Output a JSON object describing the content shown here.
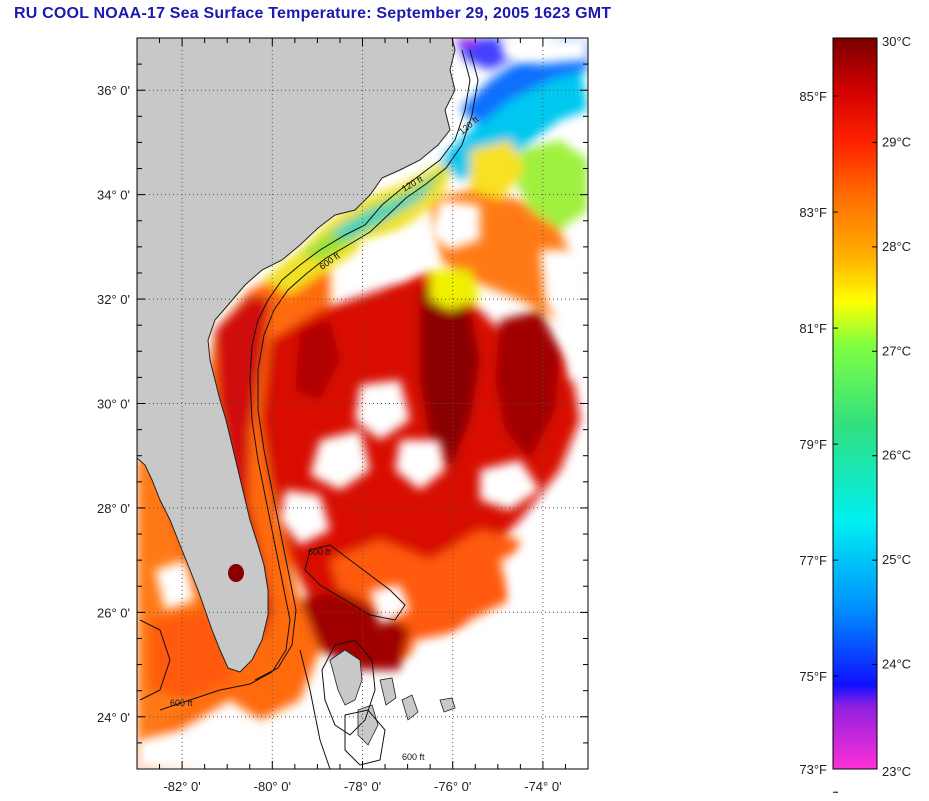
{
  "title": "RU COOL  NOAA-17  Sea Surface Temperature:  September 29, 2005 1623 GMT",
  "map": {
    "lon_range": [
      -83,
      -73
    ],
    "lat_range": [
      23,
      37
    ],
    "lat_ticks": [
      {
        "value": 36,
        "label": "36° 0'"
      },
      {
        "value": 34,
        "label": "34° 0'"
      },
      {
        "value": 32,
        "label": "32° 0'"
      },
      {
        "value": 30,
        "label": "30° 0'"
      },
      {
        "value": 28,
        "label": "28° 0'"
      },
      {
        "value": 26,
        "label": "26° 0'"
      },
      {
        "value": 24,
        "label": "24° 0'"
      }
    ],
    "lon_ticks": [
      {
        "value": -82,
        "label": "-82° 0'"
      },
      {
        "value": -80,
        "label": "-80° 0'"
      },
      {
        "value": -78,
        "label": "-78° 0'"
      },
      {
        "value": -76,
        "label": "-76° 0'"
      },
      {
        "value": -74,
        "label": "-74° 0'"
      }
    ],
    "grid": "dotted",
    "land_color": "#c8c8c8",
    "cloud_color": "#ffffff",
    "contour_labels": [
      "120 ft",
      "600 ft",
      "120 ft",
      "600 ft",
      "600 ft",
      "600 ft"
    ]
  },
  "colorbar": {
    "min_c": 23,
    "max_c": 30,
    "min_f": 73,
    "max_f": 86,
    "celsius_labels": [
      {
        "value": 30,
        "label": "30°C"
      },
      {
        "value": 29,
        "label": "29°C"
      },
      {
        "value": 28,
        "label": "28°C"
      },
      {
        "value": 27,
        "label": "27°C"
      },
      {
        "value": 26,
        "label": "26°C"
      },
      {
        "value": 25,
        "label": "25°C"
      },
      {
        "value": 24,
        "label": "24°C"
      },
      {
        "value": 23,
        "label": "23°C"
      }
    ],
    "fahrenheit_labels": [
      {
        "value": 85,
        "label": "85°F"
      },
      {
        "value": 83,
        "label": "83°F"
      },
      {
        "value": 81,
        "label": "81°F"
      },
      {
        "value": 79,
        "label": "79°F"
      },
      {
        "value": 77,
        "label": "77°F"
      },
      {
        "value": 75,
        "label": "75°F"
      },
      {
        "value": 73,
        "label": "73°F"
      }
    ],
    "colors": [
      "#ff30d8",
      "#9020e0",
      "#1010ff",
      "#0090ff",
      "#00f0f0",
      "#30e080",
      "#80ff40",
      "#ffff00",
      "#ffb000",
      "#ff7000",
      "#ff2000",
      "#d00000",
      "#7a0000"
    ]
  }
}
